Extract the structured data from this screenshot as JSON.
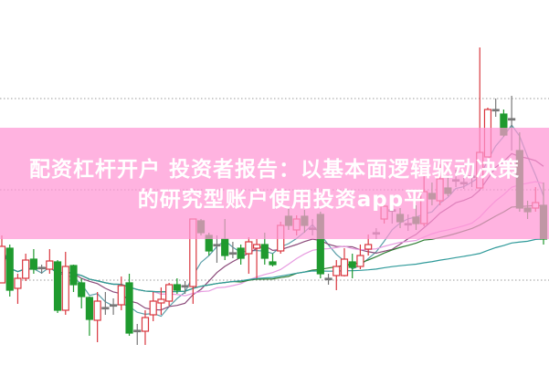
{
  "title": {
    "line1": "配资杠杆开户 投资者报告：以基本面逻辑驱动决策",
    "line2": "的研究型账户使用投资app平"
  },
  "colors": {
    "up": "#d9363e",
    "down": "#1f9a2e",
    "banner": "#ffb3de",
    "grid": "#999999",
    "ma": [
      "#5a9ea8",
      "#8b4a7a",
      "#e79be0",
      "#2e7d32",
      "#2f9a9a"
    ]
  },
  "chart_data": {
    "type": "candlestick",
    "title": "",
    "xlabel": "",
    "ylabel": "",
    "grid": "dotted horizontal",
    "legend": "none",
    "ylim": [
      0,
      400
    ],
    "moving_average_periods": [
      5,
      10,
      20,
      30,
      60
    ],
    "ohlc": [
      [
        90,
        142,
        90,
        130
      ],
      [
        128,
        132,
        75,
        82
      ],
      [
        84,
        100,
        67,
        95
      ],
      [
        95,
        122,
        92,
        115
      ],
      [
        116,
        127,
        100,
        105
      ],
      [
        107,
        110,
        100,
        107
      ],
      [
        105,
        127,
        100,
        114
      ],
      [
        113,
        115,
        57,
        60
      ],
      [
        60,
        124,
        55,
        108
      ],
      [
        109,
        110,
        80,
        88
      ],
      [
        90,
        95,
        62,
        75
      ],
      [
        74,
        75,
        32,
        50
      ],
      [
        49,
        80,
        25,
        70
      ],
      [
        63,
        80,
        55,
        63
      ],
      [
        66,
        73,
        55,
        66
      ],
      [
        66,
        97,
        60,
        87
      ],
      [
        90,
        100,
        32,
        35
      ],
      [
        38,
        45,
        22,
        38
      ],
      [
        37,
        60,
        22,
        52
      ],
      [
        55,
        80,
        48,
        70
      ],
      [
        68,
        85,
        55,
        72
      ],
      [
        70,
        90,
        65,
        88
      ],
      [
        88,
        95,
        78,
        82
      ],
      [
        87,
        92,
        78,
        87
      ],
      [
        86,
        160,
        67,
        160
      ],
      [
        158,
        160,
        142,
        145
      ],
      [
        142,
        145,
        120,
        125
      ],
      [
        132,
        142,
        112,
        132
      ],
      [
        138,
        160,
        115,
        120
      ],
      [
        123,
        135,
        117,
        123
      ],
      [
        128,
        132,
        110,
        117
      ],
      [
        122,
        140,
        100,
        135
      ],
      [
        128,
        138,
        95,
        132
      ],
      [
        132,
        145,
        110,
        117
      ],
      [
        113,
        122,
        108,
        110
      ],
      [
        125,
        157,
        122,
        153
      ],
      [
        163,
        172,
        148,
        153
      ],
      [
        148,
        164,
        142,
        160
      ],
      [
        163,
        170,
        145,
        153
      ],
      [
        150,
        160,
        142,
        150
      ],
      [
        165,
        168,
        95,
        100
      ],
      [
        95,
        100,
        88,
        95
      ],
      [
        98,
        115,
        82,
        108
      ],
      [
        98,
        128,
        97,
        116
      ],
      [
        113,
        122,
        95,
        107
      ],
      [
        108,
        132,
        105,
        120
      ],
      [
        127,
        143,
        120,
        132
      ],
      [
        145,
        150,
        138,
        145
      ],
      [
        160,
        185,
        155,
        174
      ],
      [
        170,
        180,
        155,
        170
      ],
      [
        165,
        172,
        150,
        157
      ],
      [
        155,
        165,
        147,
        155
      ],
      [
        162,
        175,
        148,
        155
      ],
      [
        155,
        207,
        152,
        190
      ],
      [
        188,
        200,
        175,
        182
      ],
      [
        180,
        220,
        175,
        204
      ],
      [
        194,
        208,
        185,
        188
      ],
      [
        203,
        214,
        195,
        203
      ],
      [
        200,
        210,
        193,
        200
      ],
      [
        207,
        220,
        195,
        207
      ],
      [
        194,
        348,
        194,
        233
      ],
      [
        228,
        282,
        228,
        280
      ],
      [
        280,
        292,
        272,
        280
      ],
      [
        275,
        280,
        250,
        252
      ],
      [
        270,
        295,
        235,
        270
      ],
      [
        235,
        255,
        168,
        172
      ],
      [
        172,
        180,
        160,
        168
      ],
      [
        172,
        195,
        168,
        178
      ],
      [
        175,
        200,
        132,
        138
      ]
    ],
    "reference_lines": [
      292,
      192,
      93
    ]
  }
}
